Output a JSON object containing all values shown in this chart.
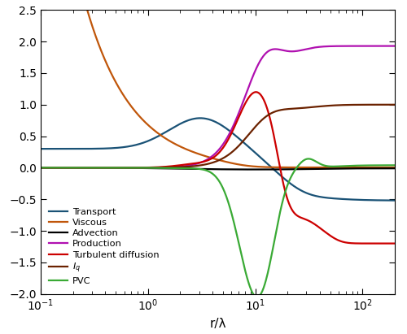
{
  "title": "",
  "xlabel": "r/λ",
  "ylabel": "",
  "xlim": [
    0.1,
    200
  ],
  "ylim": [
    -2.0,
    2.5
  ],
  "yticks": [
    -2.0,
    -1.5,
    -1.0,
    -0.5,
    0.0,
    0.5,
    1.0,
    1.5,
    2.0,
    2.5
  ],
  "colors": {
    "Transport": "#1a5276",
    "Viscous": "#c0560a",
    "Advection": "#000000",
    "Production": "#b010b0",
    "Turbulent_diffusion": "#cc0000",
    "Iq": "#6b2200",
    "PVC": "#3aaa35"
  },
  "line_width": 1.6,
  "figsize": [
    5.0,
    4.11
  ],
  "dpi": 100
}
